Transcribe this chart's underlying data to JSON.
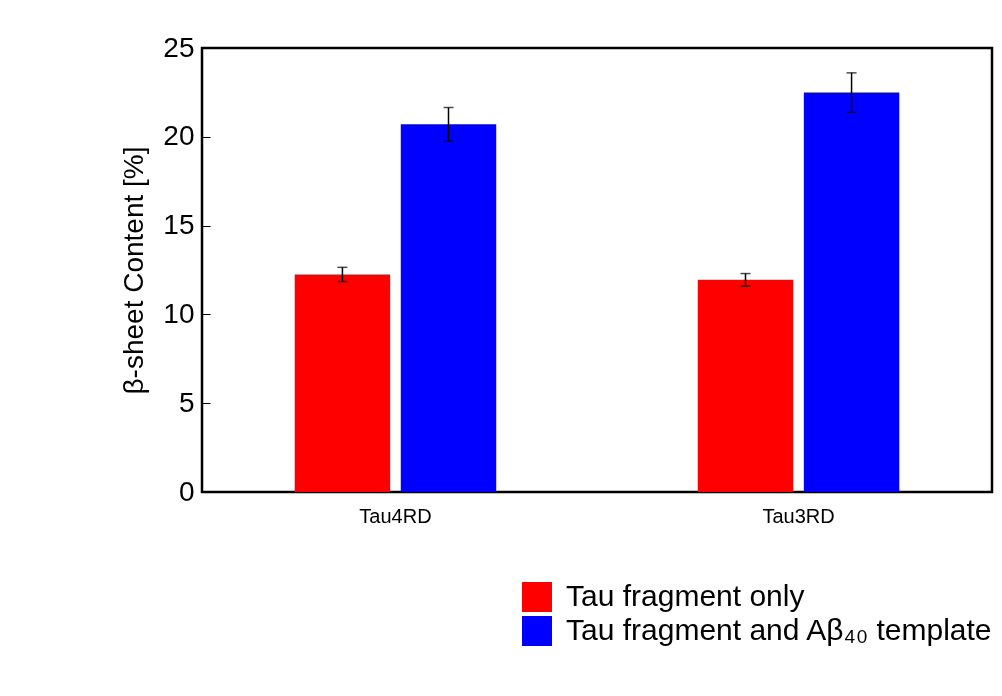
{
  "chart_data": {
    "type": "bar",
    "ylabel": "β-sheet Content [%]",
    "categories": [
      "Tau4RD",
      "Tau3RD"
    ],
    "series": [
      {
        "name": "Tau fragment only",
        "color": "#ff0000",
        "values": [
          12.25,
          11.95
        ],
        "errors": [
          0.4,
          0.35
        ]
      },
      {
        "name": "Tau fragment and Aβ₄₀ template",
        "color": "#0000ff",
        "values": [
          20.7,
          22.5
        ],
        "errors": [
          0.95,
          1.1
        ]
      }
    ],
    "ylim": [
      0,
      25
    ],
    "yticks": [
      0,
      5,
      10,
      15,
      20,
      25
    ],
    "grid": false,
    "legend": "bottom right"
  }
}
